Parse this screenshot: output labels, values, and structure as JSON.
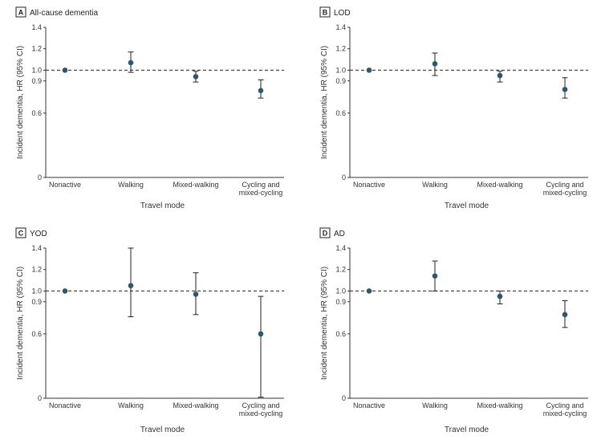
{
  "colors": {
    "point": "#2d5966",
    "axis": "#333333",
    "reference": "#222222"
  },
  "chart_data": [
    {
      "type": "scatter",
      "panel": "A",
      "title": "All-cause dementia",
      "xlabel": "Travel mode",
      "ylabel": "Incident dementia, HR (95% CI)",
      "ylim": [
        0,
        1.4
      ],
      "yticks": [
        0,
        0.6,
        0.9,
        1.0,
        1.2,
        1.4
      ],
      "ytick_labels": [
        "0",
        "0.6",
        "0.9",
        "1.0",
        "1.2",
        "1.4"
      ],
      "reference_line": 1.0,
      "categories": [
        "Nonactive",
        "Walking",
        "Mixed-walking",
        "Cycling and mixed-cycling"
      ],
      "estimates": [
        1.0,
        1.07,
        0.94,
        0.81
      ],
      "ci_lower": [
        null,
        0.98,
        0.89,
        0.74
      ],
      "ci_upper": [
        null,
        1.17,
        0.99,
        0.91
      ]
    },
    {
      "type": "scatter",
      "panel": "B",
      "title": "LOD",
      "xlabel": "Travel mode",
      "ylabel": "Incident dementia, HR (95% CI)",
      "ylim": [
        0,
        1.4
      ],
      "yticks": [
        0,
        0.6,
        0.9,
        1.0,
        1.2,
        1.4
      ],
      "ytick_labels": [
        "0",
        "0.6",
        "0.9",
        "1.0",
        "1.2",
        "1.4"
      ],
      "reference_line": 1.0,
      "categories": [
        "Nonactive",
        "Walking",
        "Mixed-walking",
        "Cycling and mixed-cycling"
      ],
      "estimates": [
        1.0,
        1.06,
        0.95,
        0.82
      ],
      "ci_lower": [
        null,
        0.95,
        0.89,
        0.74
      ],
      "ci_upper": [
        null,
        1.16,
        0.99,
        0.93
      ]
    },
    {
      "type": "scatter",
      "panel": "C",
      "title": "YOD",
      "xlabel": "Travel mode",
      "ylabel": "Incident dementia, HR (95% CI)",
      "ylim": [
        0,
        1.4
      ],
      "yticks": [
        0,
        0.6,
        0.9,
        1.0,
        1.2,
        1.4
      ],
      "ytick_labels": [
        "0",
        "0.6",
        "0.9",
        "1.0",
        "1.2",
        "1.4"
      ],
      "reference_line": 1.0,
      "categories": [
        "Nonactive",
        "Walking",
        "Mixed-walking",
        "Cycling and mixed-cycling"
      ],
      "estimates": [
        1.0,
        1.05,
        0.97,
        0.6
      ],
      "ci_lower": [
        null,
        0.76,
        0.78,
        0.01
      ],
      "ci_upper": [
        null,
        1.4,
        1.17,
        0.95
      ]
    },
    {
      "type": "scatter",
      "panel": "D",
      "title": "AD",
      "xlabel": "Travel mode",
      "ylabel": "Incident dementia, HR (95% CI)",
      "ylim": [
        0,
        1.4
      ],
      "yticks": [
        0,
        0.6,
        0.9,
        1.0,
        1.2,
        1.4
      ],
      "ytick_labels": [
        "0",
        "0.6",
        "0.9",
        "1.0",
        "1.2",
        "1.4"
      ],
      "reference_line": 1.0,
      "categories": [
        "Nonactive",
        "Walking",
        "Mixed-walking",
        "Cycling and mixed-cycling"
      ],
      "estimates": [
        1.0,
        1.14,
        0.95,
        0.78
      ],
      "ci_lower": [
        null,
        1.0,
        0.88,
        0.66
      ],
      "ci_upper": [
        null,
        1.28,
        1.0,
        0.91
      ]
    }
  ]
}
